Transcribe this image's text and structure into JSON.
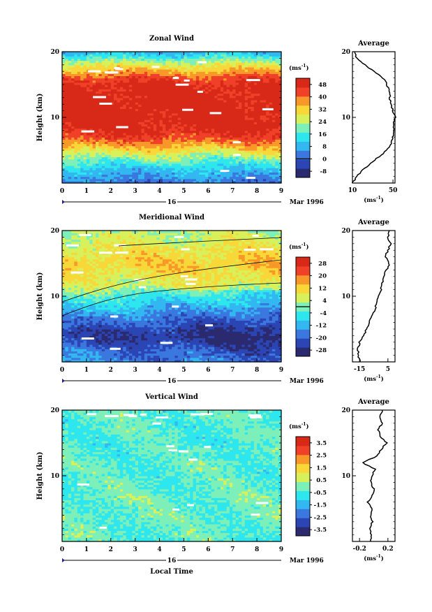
{
  "chart_data": [
    {
      "type": "heatmap",
      "id": "zonal",
      "title": "Zonal Wind",
      "ylabel": "Height (km)",
      "xticks": [
        "0",
        "1",
        "2",
        "3",
        "4",
        "5",
        "6",
        "7",
        "8",
        "9"
      ],
      "yticks": [
        {
          "v": 20,
          "label": "20"
        },
        {
          "v": 10,
          "label": "10"
        }
      ],
      "ylim": [
        0,
        20
      ],
      "xlim": [
        0,
        9
      ],
      "date_label": "16",
      "month_label": "Mar 1996",
      "units": "(ms",
      "units_exp": "-1",
      "units_close": ")",
      "colorbar_levels": [
        -8,
        0,
        8,
        16,
        24,
        32,
        40,
        48
      ],
      "colorbar_labels": [
        "-8",
        "0",
        "8",
        "16",
        "24",
        "32",
        "40",
        "48"
      ],
      "colorbar_mark": 0,
      "colorbar_min": -12,
      "colorbar_max": 52,
      "field_profile": [
        2,
        6,
        10,
        16,
        22,
        30,
        38,
        44,
        48,
        50,
        50,
        50,
        50,
        50,
        49,
        48,
        44,
        36,
        28,
        18,
        8
      ],
      "average": {
        "title": "Average",
        "xticks": [
          {
            "v": 10,
            "label": "10"
          },
          {
            "v": 50,
            "label": "50"
          }
        ],
        "xlim": [
          10,
          52
        ],
        "yticks": [
          {
            "v": 20,
            "label": "20"
          },
          {
            "v": 10,
            "label": "10"
          }
        ],
        "xlabel": "(ms",
        "xlabel_exp": "-1",
        "xlabel_close": ")",
        "profile": [
          [
            10,
            0
          ],
          [
            14,
            1
          ],
          [
            20,
            2
          ],
          [
            28,
            3
          ],
          [
            36,
            4
          ],
          [
            44,
            5
          ],
          [
            48,
            6
          ],
          [
            50,
            7
          ],
          [
            51,
            8
          ],
          [
            51,
            9
          ],
          [
            52,
            10
          ],
          [
            50,
            11
          ],
          [
            48,
            12
          ],
          [
            47,
            13
          ],
          [
            46,
            14
          ],
          [
            44,
            15
          ],
          [
            40,
            16
          ],
          [
            32,
            17
          ],
          [
            22,
            18
          ],
          [
            14,
            19
          ],
          [
            12,
            20
          ]
        ]
      }
    },
    {
      "type": "heatmap",
      "id": "meridional",
      "title": "Meridional Wind",
      "ylabel": "Height (km)",
      "xticks": [
        "0",
        "1",
        "2",
        "3",
        "4",
        "5",
        "6",
        "7",
        "8",
        "9"
      ],
      "yticks": [
        {
          "v": 20,
          "label": "20"
        },
        {
          "v": 10,
          "label": "10"
        }
      ],
      "ylim": [
        0,
        20
      ],
      "xlim": [
        0,
        9
      ],
      "date_label": "16",
      "month_label": "Mar 1996",
      "units": "(ms",
      "units_exp": "-1",
      "units_close": ")",
      "colorbar_levels": [
        -28,
        -20,
        -12,
        -4,
        4,
        12,
        20,
        28
      ],
      "colorbar_labels": [
        "-28",
        "-20",
        "-12",
        "-4",
        "4",
        "12",
        "20",
        "28"
      ],
      "colorbar_mark": 0,
      "colorbar_min": -32,
      "colorbar_max": 32,
      "field_profile": [
        -14,
        -16,
        -18,
        -22,
        -24,
        -22,
        -18,
        -14,
        -10,
        -6,
        -2,
        2,
        6,
        8,
        10,
        12,
        10,
        8,
        6,
        4,
        2
      ],
      "average": {
        "title": "Average",
        "xticks": [
          {
            "v": -15,
            "label": "-15"
          },
          {
            "v": 5,
            "label": "5"
          }
        ],
        "xlim": [
          -20,
          10
        ],
        "yticks": [
          {
            "v": 20,
            "label": "20"
          },
          {
            "v": 10,
            "label": "10"
          }
        ],
        "xlabel": "(ms",
        "xlabel_exp": "-1",
        "xlabel_close": ")",
        "profile": [
          [
            -14,
            0
          ],
          [
            -16,
            1
          ],
          [
            -16,
            2
          ],
          [
            -15,
            3
          ],
          [
            -12,
            4
          ],
          [
            -10,
            5
          ],
          [
            -8,
            6
          ],
          [
            -6,
            7
          ],
          [
            -4,
            8
          ],
          [
            -3,
            9
          ],
          [
            -2,
            10
          ],
          [
            0,
            11
          ],
          [
            1,
            12
          ],
          [
            2,
            13
          ],
          [
            4,
            14
          ],
          [
            6,
            15
          ],
          [
            3,
            16
          ],
          [
            5,
            17
          ],
          [
            7,
            18
          ],
          [
            5,
            19
          ],
          [
            6,
            20
          ]
        ]
      }
    },
    {
      "type": "heatmap",
      "id": "vertical",
      "title": "Vertical Wind",
      "ylabel": "Height (km)",
      "xlabel": "Local Time",
      "xticks": [
        "0",
        "1",
        "2",
        "3",
        "4",
        "5",
        "6",
        "7",
        "8",
        "9"
      ],
      "yticks": [
        {
          "v": 20,
          "label": "20"
        },
        {
          "v": 10,
          "label": "10"
        }
      ],
      "ylim": [
        0,
        20
      ],
      "xlim": [
        0,
        9
      ],
      "date_label": "16",
      "month_label": "Mar 1996",
      "units": "(ms",
      "units_exp": "-1",
      "units_close": ")",
      "colorbar_levels": [
        -3.5,
        -2.5,
        -1.5,
        -0.5,
        0.5,
        1.5,
        2.5,
        3.5
      ],
      "colorbar_labels": [
        "-3.5",
        "-2.5",
        "-1.5",
        "-0.5",
        "0.5",
        "1.5",
        "2.5",
        "3.5"
      ],
      "colorbar_mark": null,
      "colorbar_min": -4,
      "colorbar_max": 4,
      "field_profile": [
        -0.4,
        -0.2,
        -0.3,
        -0.2,
        -0.1,
        -0.3,
        -0.2,
        -0.1,
        -0.3,
        -0.2,
        -0.4,
        -0.3,
        -0.2,
        -0.4,
        -0.3,
        -0.5,
        -0.4,
        -0.3,
        -0.4,
        -0.3,
        -0.4
      ],
      "average": {
        "title": "Average",
        "xticks": [
          {
            "v": -0.2,
            "label": "-0.2"
          },
          {
            "v": 0.2,
            "label": "0.2"
          }
        ],
        "xlim": [
          -0.3,
          0.3
        ],
        "yticks": [
          {
            "v": 20,
            "label": "20"
          },
          {
            "v": 10,
            "label": "10"
          }
        ],
        "xlabel": "(ms",
        "xlabel_exp": "-1",
        "xlabel_close": ")",
        "profile": [
          [
            -0.05,
            0
          ],
          [
            -0.04,
            1
          ],
          [
            -0.06,
            2
          ],
          [
            -0.02,
            3
          ],
          [
            -0.05,
            4
          ],
          [
            -0.03,
            5
          ],
          [
            -0.08,
            6
          ],
          [
            -0.02,
            7
          ],
          [
            0.0,
            8
          ],
          [
            -0.04,
            9
          ],
          [
            -0.02,
            10
          ],
          [
            0.02,
            11
          ],
          [
            -0.16,
            12
          ],
          [
            0.05,
            13
          ],
          [
            0.1,
            14
          ],
          [
            0.18,
            15
          ],
          [
            0.1,
            16
          ],
          [
            0.06,
            17
          ],
          [
            0.12,
            18
          ],
          [
            0.08,
            19
          ],
          [
            0.12,
            20
          ]
        ]
      }
    }
  ],
  "colors": {
    "scale": [
      "#2b2a6e",
      "#2b46b4",
      "#3a78e0",
      "#33b7f0",
      "#2ee6ee",
      "#7cf0b8",
      "#d8f05a",
      "#f8d838",
      "#f89828",
      "#f04028",
      "#d82818"
    ]
  }
}
